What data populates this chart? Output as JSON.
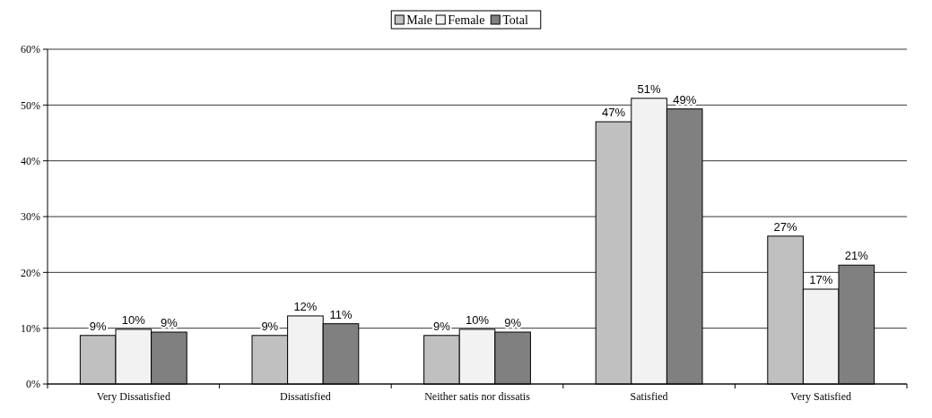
{
  "chart_data": {
    "type": "bar",
    "categories": [
      "Very Dissatisfied",
      "Dissatisfied",
      "Neither satis nor dissatis",
      "Satisfied",
      "Very Satisfied"
    ],
    "series": [
      {
        "name": "Male",
        "color": "#c0c0c0",
        "values": [
          8.7,
          8.7,
          8.7,
          47.0,
          26.5
        ],
        "value_labels": [
          "9%",
          "9%",
          "9%",
          "47%",
          "27%"
        ]
      },
      {
        "name": "Female",
        "color": "#f2f2f2",
        "values": [
          9.8,
          12.2,
          9.8,
          51.2,
          17.0
        ],
        "value_labels": [
          "10%",
          "12%",
          "10%",
          "51%",
          "17%"
        ]
      },
      {
        "name": "Total",
        "color": "#808080",
        "values": [
          9.3,
          10.8,
          9.3,
          49.3,
          21.3
        ],
        "value_labels": [
          "9%",
          "11%",
          "9%",
          "49%",
          "21%"
        ]
      }
    ],
    "ylim": [
      0,
      60
    ],
    "yticks": [
      {
        "value": 0,
        "label": "0%"
      },
      {
        "value": 10,
        "label": "10%"
      },
      {
        "value": 20,
        "label": "20%"
      },
      {
        "value": 30,
        "label": "30%"
      },
      {
        "value": 40,
        "label": "40%"
      },
      {
        "value": 50,
        "label": "50%"
      },
      {
        "value": 60,
        "label": "60%"
      }
    ],
    "grid": "y",
    "legend": "top"
  }
}
